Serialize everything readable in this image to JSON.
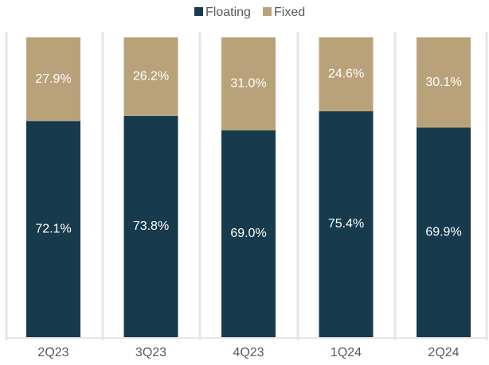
{
  "chart_data": {
    "type": "stacked_bar",
    "categories": [
      "2Q23",
      "3Q23",
      "4Q23",
      "1Q24",
      "2Q24"
    ],
    "series": [
      {
        "name": "Floating",
        "color": "#173a4d",
        "values": [
          72.1,
          73.8,
          69.0,
          75.4,
          69.9
        ],
        "value_labels": [
          "72.1%",
          "73.8%",
          "69.0%",
          "75.4%",
          "69.9%"
        ]
      },
      {
        "name": "Fixed",
        "color": "#b9a27a",
        "values": [
          27.9,
          26.2,
          31.0,
          24.6,
          30.1
        ],
        "value_labels": [
          "27.9%",
          "26.2%",
          "31.0%",
          "24.6%",
          "30.1%"
        ]
      }
    ],
    "ylim": [
      0,
      100
    ],
    "legend": "top"
  }
}
